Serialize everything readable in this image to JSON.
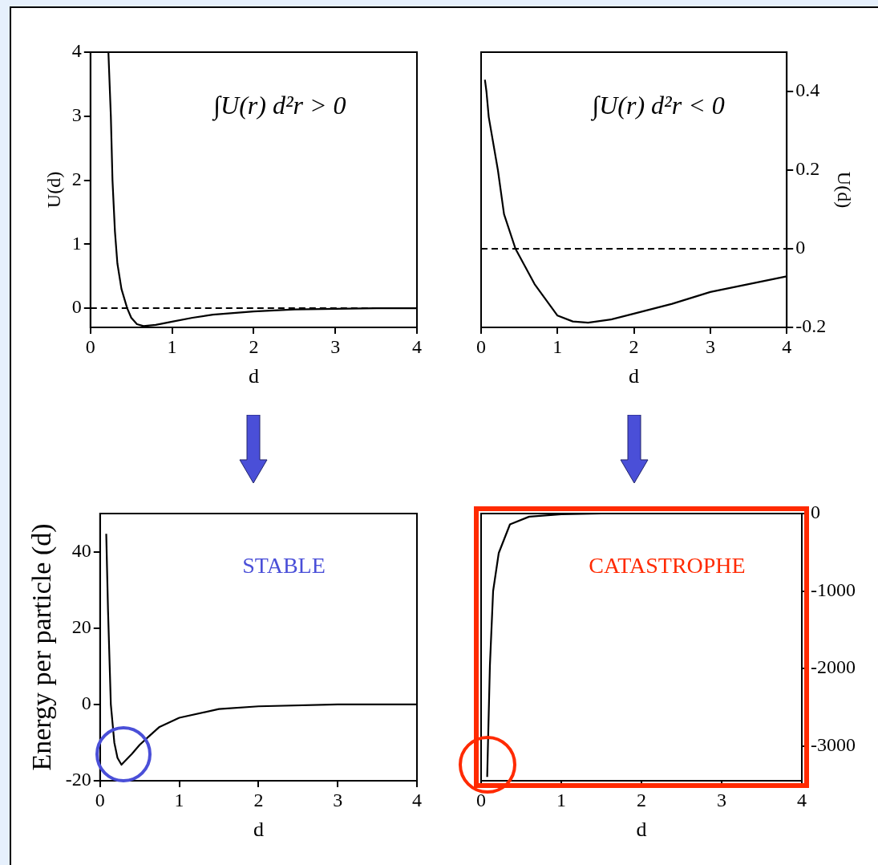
{
  "chart_data": [
    {
      "type": "line",
      "xlabel": "d",
      "ylabel": "U(d)",
      "xlim": [
        0,
        4
      ],
      "xticks": [
        0,
        1,
        2,
        3,
        4
      ],
      "ylim": [
        -0.3,
        4
      ],
      "yticks": [
        0,
        1,
        2,
        3,
        4
      ],
      "annotations": [
        "∫U(r) d²r > 0"
      ],
      "ref_lines": [
        {
          "axis": "y",
          "value": 0,
          "line_style": "dashed",
          "color": "#000000"
        }
      ],
      "series": [
        {
          "color": "#000000",
          "x": [
            0.22,
            0.25,
            0.27,
            0.3,
            0.33,
            0.38,
            0.45,
            0.5,
            0.57,
            0.65,
            0.8,
            1,
            1.25,
            1.5,
            2,
            2.5,
            3,
            3.5,
            4
          ],
          "values": [
            4,
            3,
            2,
            1.2,
            0.7,
            0.3,
            0,
            -0.15,
            -0.25,
            -0.28,
            -0.26,
            -0.21,
            -0.15,
            -0.1,
            -0.05,
            -0.02,
            -0.01,
            0,
            0
          ]
        }
      ]
    },
    {
      "type": "line",
      "xlabel": "d",
      "y2label": "U(d)",
      "xlim": [
        0,
        4
      ],
      "xticks": [
        0,
        1,
        2,
        3,
        4
      ],
      "y2lim": [
        -0.2,
        0.5
      ],
      "y2ticks": [
        -0.2,
        0,
        0.2,
        0.4
      ],
      "annotations": [
        "∫U(r) d²r < 0"
      ],
      "ref_lines": [
        {
          "axis": "y2",
          "value": 0,
          "line_style": "dashed",
          "color": "#000000"
        }
      ],
      "series": [
        {
          "color": "#000000",
          "axis": "y2",
          "x": [
            0.05,
            0.07,
            0.1,
            0.22,
            0.3,
            0.45,
            0.7,
            1,
            1.2,
            1.4,
            1.7,
            2,
            2.5,
            3,
            4
          ],
          "values": [
            0.43,
            0.4,
            0.335,
            0.2,
            0.088,
            0,
            -0.09,
            -0.17,
            -0.185,
            -0.188,
            -0.18,
            -0.165,
            -0.14,
            -0.11,
            -0.07
          ]
        }
      ]
    },
    {
      "type": "line",
      "xlabel": "d",
      "ylabel": "Energy per particle (d)",
      "xlim": [
        0,
        4
      ],
      "xticks": [
        0,
        1,
        2,
        3,
        4
      ],
      "ylim": [
        -20,
        50
      ],
      "yticks": [
        -20,
        0,
        20,
        40
      ],
      "annotations": [
        "STABLE"
      ],
      "series": [
        {
          "color": "#000000",
          "x": [
            0.078,
            0.1,
            0.136,
            0.18,
            0.22,
            0.27,
            0.4,
            0.5,
            0.62,
            0.75,
            1,
            1.5,
            2,
            3,
            4
          ],
          "values": [
            44.7,
            25,
            0,
            -10,
            -14,
            -15.8,
            -13,
            -10.6,
            -8.3,
            -5.9,
            -3.5,
            -1.2,
            -0.5,
            0,
            0
          ]
        }
      ]
    },
    {
      "type": "line",
      "xlabel": "d",
      "xlim": [
        0,
        4
      ],
      "xticks": [
        0,
        1,
        2,
        3,
        4
      ],
      "y2lim": [
        -3450,
        0
      ],
      "y2ticks": [
        -3000,
        -2000,
        -1000,
        0
      ],
      "annotations": [
        "CATASTROPHE"
      ],
      "series": [
        {
          "color": "#000000",
          "axis": "y2",
          "x": [
            0.076,
            0.09,
            0.11,
            0.15,
            0.22,
            0.36,
            0.6,
            1,
            1.5,
            2,
            3,
            4
          ],
          "values": [
            -3400,
            -2800,
            -1960,
            -1000,
            -510,
            -140,
            -40,
            -10,
            0,
            0,
            0,
            0
          ]
        }
      ]
    }
  ]
}
